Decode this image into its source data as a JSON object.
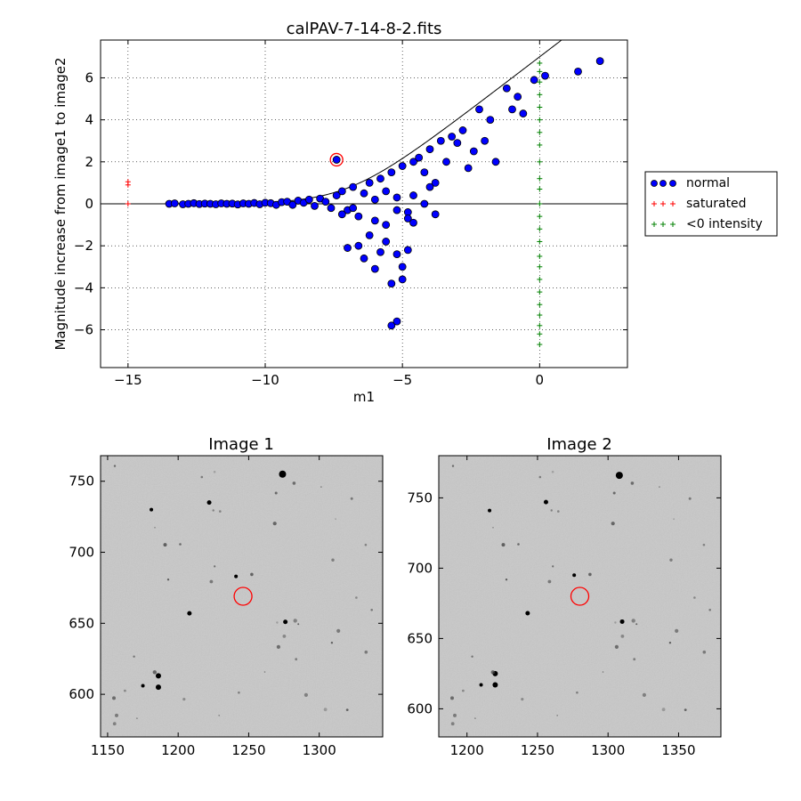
{
  "chart_data": [
    {
      "type": "scatter",
      "title": "calPAV-7-14-8-2.fits",
      "xlabel": "m1",
      "ylabel": "Magnitude increase from image1 to image2",
      "xlim": [
        -16,
        3.2
      ],
      "ylim": [
        -7.8,
        7.8
      ],
      "xticks": [
        -15,
        -10,
        -5,
        0
      ],
      "yticks": [
        -6,
        -4,
        -2,
        0,
        2,
        4,
        6
      ],
      "grid": true,
      "legend": "outside-right",
      "series": [
        {
          "name": "normal",
          "marker": "circle",
          "color": "#0000ff",
          "points": [
            [
              -13.5,
              0.0
            ],
            [
              -13.3,
              0.02
            ],
            [
              -13.0,
              -0.02
            ],
            [
              -12.8,
              0.0
            ],
            [
              -12.6,
              0.03
            ],
            [
              -12.4,
              -0.01
            ],
            [
              -12.2,
              0.01
            ],
            [
              -12.0,
              0.0
            ],
            [
              -11.8,
              -0.02
            ],
            [
              -11.6,
              0.02
            ],
            [
              -11.4,
              0.0
            ],
            [
              -11.2,
              0.01
            ],
            [
              -11.0,
              -0.03
            ],
            [
              -10.8,
              0.02
            ],
            [
              -10.6,
              0.0
            ],
            [
              -10.4,
              0.04
            ],
            [
              -10.2,
              -0.02
            ],
            [
              -10.0,
              0.05
            ],
            [
              -9.8,
              0.03
            ],
            [
              -9.6,
              -0.05
            ],
            [
              -9.4,
              0.08
            ],
            [
              -9.2,
              0.1
            ],
            [
              -9.0,
              -0.05
            ],
            [
              -8.8,
              0.15
            ],
            [
              -8.6,
              0.05
            ],
            [
              -8.4,
              0.2
            ],
            [
              -8.2,
              -0.1
            ],
            [
              -8.0,
              0.25
            ],
            [
              -7.8,
              0.1
            ],
            [
              -7.6,
              -0.2
            ],
            [
              -7.4,
              0.4
            ],
            [
              -7.2,
              0.6
            ],
            [
              -7.0,
              -0.3
            ],
            [
              -6.8,
              0.8
            ],
            [
              -6.6,
              -0.6
            ],
            [
              -6.4,
              0.5
            ],
            [
              -6.2,
              1.0
            ],
            [
              -6.0,
              -0.8
            ],
            [
              -5.8,
              1.2
            ],
            [
              -5.6,
              -1.0
            ],
            [
              -5.4,
              1.5
            ],
            [
              -5.2,
              0.3
            ],
            [
              -5.0,
              1.8
            ],
            [
              -4.8,
              -0.4
            ],
            [
              -4.6,
              2.0
            ],
            [
              -4.4,
              2.2
            ],
            [
              -4.2,
              1.5
            ],
            [
              -4.0,
              2.6
            ],
            [
              -3.8,
              1.0
            ],
            [
              -3.6,
              3.0
            ],
            [
              -3.4,
              2.0
            ],
            [
              -3.2,
              3.2
            ],
            [
              -3.0,
              2.9
            ],
            [
              -2.8,
              3.5
            ],
            [
              -2.6,
              1.7
            ],
            [
              -2.4,
              2.5
            ],
            [
              -2.2,
              4.5
            ],
            [
              -2.0,
              3.0
            ],
            [
              -1.8,
              4.0
            ],
            [
              -1.6,
              2.0
            ],
            [
              -1.2,
              5.5
            ],
            [
              -1.0,
              4.5
            ],
            [
              -0.8,
              5.1
            ],
            [
              -0.6,
              4.3
            ],
            [
              -0.2,
              5.9
            ],
            [
              0.2,
              6.1
            ],
            [
              1.4,
              6.3
            ],
            [
              2.2,
              6.8
            ],
            [
              -7.4,
              2.1
            ],
            [
              -7.0,
              -2.1
            ],
            [
              -6.6,
              -2.0
            ],
            [
              -6.4,
              -2.6
            ],
            [
              -6.2,
              -1.5
            ],
            [
              -6.0,
              -3.1
            ],
            [
              -5.8,
              -2.3
            ],
            [
              -5.6,
              -1.8
            ],
            [
              -5.4,
              -3.8
            ],
            [
              -5.2,
              -2.4
            ],
            [
              -5.0,
              -3.0
            ],
            [
              -4.8,
              -2.2
            ],
            [
              -5.0,
              -3.6
            ],
            [
              -5.4,
              -5.8
            ],
            [
              -5.2,
              -5.6
            ],
            [
              -4.8,
              -0.7
            ],
            [
              -4.6,
              -0.9
            ],
            [
              -4.2,
              0.0
            ],
            [
              -3.8,
              -0.5
            ],
            [
              -4.0,
              0.8
            ],
            [
              -6.8,
              -0.2
            ],
            [
              -7.2,
              -0.5
            ],
            [
              -6.0,
              0.2
            ],
            [
              -5.6,
              0.6
            ],
            [
              -5.2,
              -0.3
            ],
            [
              -4.6,
              0.4
            ]
          ]
        },
        {
          "name": "saturated",
          "marker": "plus",
          "color": "#ff0000",
          "points": [
            [
              -15.0,
              0.9
            ],
            [
              -15.0,
              1.05
            ],
            [
              -15.0,
              0.0
            ]
          ]
        },
        {
          "name": "<0 intensity",
          "marker": "plus",
          "color": "#008000",
          "points": [
            [
              0.0,
              6.7
            ],
            [
              0.0,
              6.3
            ],
            [
              0.0,
              5.8
            ],
            [
              0.0,
              5.2
            ],
            [
              0.0,
              4.6
            ],
            [
              0.0,
              4.0
            ],
            [
              0.0,
              3.4
            ],
            [
              0.0,
              2.8
            ],
            [
              0.0,
              2.0
            ],
            [
              0.0,
              1.2
            ],
            [
              0.0,
              0.7
            ],
            [
              0.0,
              0.0
            ],
            [
              0.0,
              -0.6
            ],
            [
              0.0,
              -1.2
            ],
            [
              0.0,
              -1.8
            ],
            [
              0.0,
              -2.5
            ],
            [
              0.0,
              -3.0
            ],
            [
              0.0,
              -3.6
            ],
            [
              0.0,
              -4.2
            ],
            [
              0.0,
              -4.8
            ],
            [
              0.0,
              -5.3
            ],
            [
              0.0,
              -5.8
            ],
            [
              0.0,
              -6.2
            ],
            [
              0.0,
              -6.7
            ]
          ]
        }
      ],
      "highlight": {
        "x": -7.4,
        "y": 2.1,
        "color": "#ff0000"
      }
    },
    {
      "type": "image",
      "title": "Image 1",
      "xlim": [
        1145,
        1345
      ],
      "ylim": [
        570,
        768
      ],
      "xticks": [
        1150,
        1200,
        1250,
        1300
      ],
      "yticks": [
        600,
        650,
        700,
        750
      ],
      "highlight": {
        "x": 1246,
        "y": 669,
        "color": "#ff0000"
      }
    },
    {
      "type": "image",
      "title": "Image 2",
      "xlim": [
        1180,
        1380
      ],
      "ylim": [
        580,
        780
      ],
      "xticks": [
        1200,
        1250,
        1300,
        1350
      ],
      "yticks": [
        600,
        650,
        700,
        750
      ],
      "highlight": {
        "x": 1280,
        "y": 680,
        "color": "#ff0000"
      }
    }
  ]
}
